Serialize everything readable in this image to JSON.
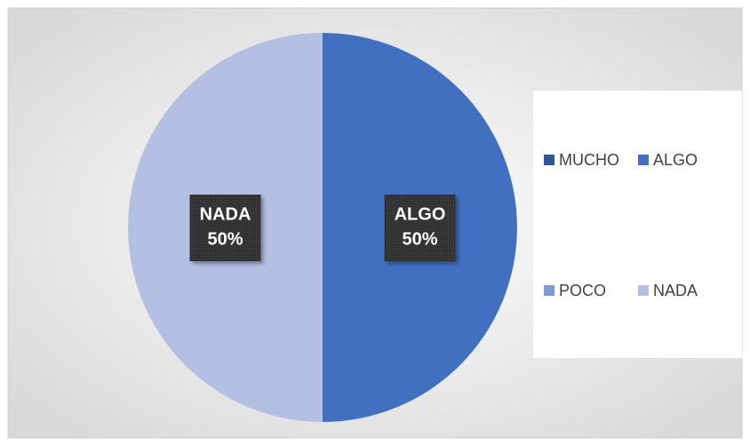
{
  "chart_data": {
    "type": "pie",
    "categories": [
      "MUCHO",
      "ALGO",
      "POCO",
      "NADA"
    ],
    "values": [
      0,
      50,
      0,
      50
    ],
    "value_labels": [
      null,
      "50%",
      null,
      "50%"
    ],
    "colors": [
      "#2e5597",
      "#4170c0",
      "#7f9ad6",
      "#b3bfe3"
    ],
    "legend": "right"
  }
}
